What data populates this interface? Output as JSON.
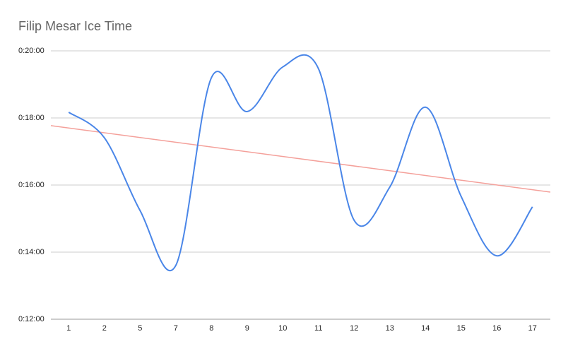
{
  "chart_data": {
    "type": "line",
    "title": "Filip Mesar Ice Time",
    "categories": [
      "1",
      "2",
      "5",
      "7",
      "8",
      "9",
      "10",
      "11",
      "12",
      "13",
      "14",
      "15",
      "16",
      "17"
    ],
    "series": [
      {
        "name": "Ice Time",
        "color": "#4a86e8",
        "values": [
          18.17,
          17.41,
          15.24,
          13.6,
          19.2,
          18.19,
          19.52,
          19.47,
          14.95,
          15.94,
          18.32,
          15.66,
          13.89,
          15.35
        ]
      }
    ],
    "trendline": {
      "color": "#f4a09a",
      "values": [
        17.77,
        15.79
      ]
    },
    "ylim": [
      12,
      20
    ],
    "yticks": [
      {
        "value": 12,
        "label": "0:12:00"
      },
      {
        "value": 14,
        "label": "0:14:00"
      },
      {
        "value": 16,
        "label": "0:16:00"
      },
      {
        "value": 18,
        "label": "0:18:00"
      },
      {
        "value": 20,
        "label": "0:20:00"
      }
    ],
    "grid": true
  }
}
